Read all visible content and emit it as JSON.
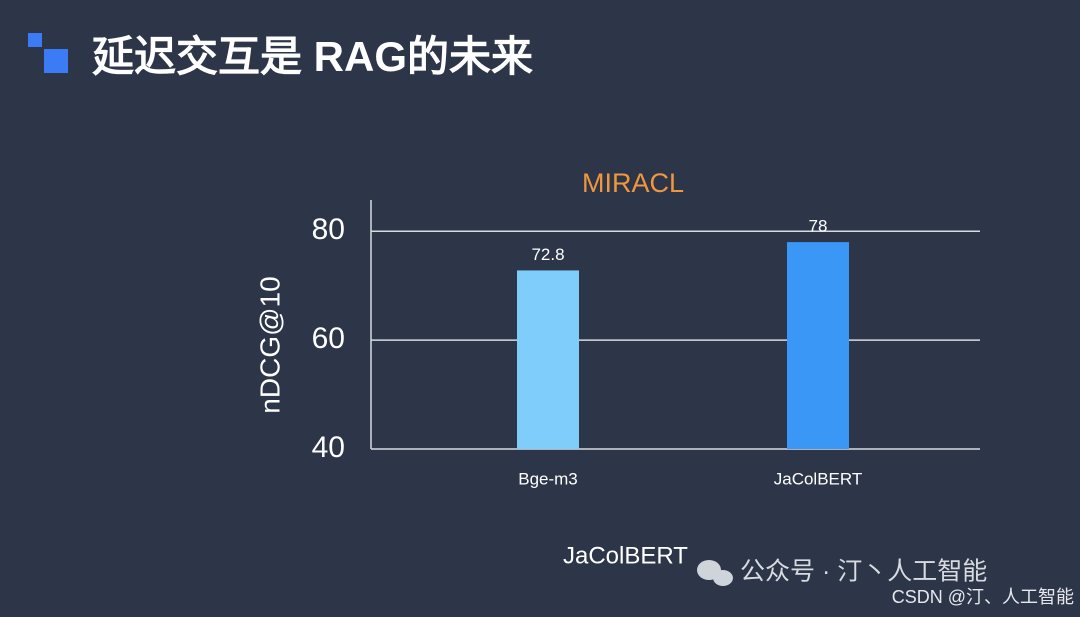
{
  "slide": {
    "title": "延迟交互是 RAG的未来",
    "caption": "JaColBERT",
    "watermark": "公众号 · 汀丶人工智能",
    "credit": "CSDN @汀、人工智能"
  },
  "chart_data": {
    "type": "bar",
    "title": "MIRACL",
    "y_label": "nDCG@10",
    "categories": [
      "Bge-m3",
      "JaColBERT"
    ],
    "values": [
      72.8,
      78
    ],
    "colors": [
      "#7fcdfb",
      "#3a97f5"
    ],
    "ylim": [
      40,
      85
    ],
    "yticks": [
      40,
      60,
      80
    ],
    "grid": true
  }
}
